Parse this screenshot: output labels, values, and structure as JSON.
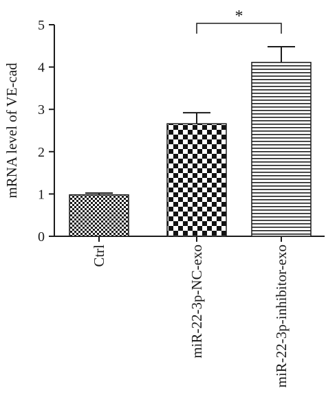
{
  "chart_data": {
    "type": "bar",
    "ylabel": "mRNA level of VE-cad",
    "xlabel": "",
    "ylim": [
      0,
      5
    ],
    "yticks": [
      "0",
      "1",
      "2",
      "3",
      "4",
      "5"
    ],
    "categories": [
      "Ctrl",
      "miR-22-3p-NC-exo",
      "miR-22-3p-inhibitor-exo"
    ],
    "values": [
      0.98,
      2.66,
      4.11
    ],
    "errors": [
      0.04,
      0.26,
      0.37
    ],
    "patterns": [
      "fine-checker",
      "checker",
      "horizontal-lines"
    ],
    "significance": [
      {
        "from": 1,
        "to": 2,
        "label": "*",
        "y": 5.0
      }
    ],
    "grid": false,
    "legend": "none"
  }
}
